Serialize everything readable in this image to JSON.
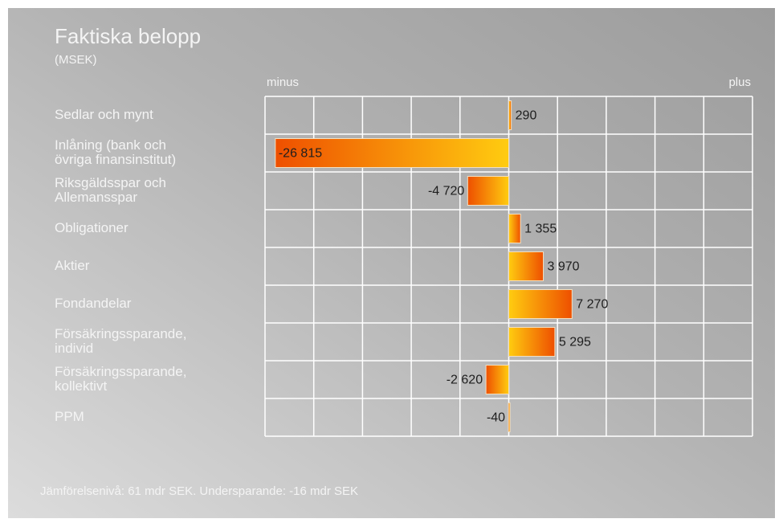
{
  "chart_data": {
    "type": "hbar",
    "title": "Faktiska belopp",
    "subtitle": "(MSEK)",
    "left_label": "minus",
    "right_label": "plus",
    "categories": [
      "Sedlar och mynt",
      "Inlåning (bank och\növriga finansinstitut)",
      "Riksgäldsspar och\nAllemansspar",
      "Obligationer",
      "Aktier",
      "Fondandelar",
      "Försäkringssparande,\nindivid",
      "Försäkringssparande,\nkollektivt",
      "PPM"
    ],
    "values": [
      290,
      -26815,
      -4720,
      1355,
      3970,
      7270,
      5295,
      -2620,
      -40
    ],
    "value_labels": [
      "290",
      "-26 815",
      "-4 720",
      "1 355",
      "3 970",
      "7 270",
      "5 295",
      "-2 620",
      "-40"
    ],
    "colors": [
      "#ffcc10",
      "#ee4f00"
    ],
    "xlim": [
      -28000,
      28000
    ],
    "grid": true,
    "footnote": "Jämförelsenivå: 61 mdr SEK. Undersparande: -16 mdr SEK"
  }
}
